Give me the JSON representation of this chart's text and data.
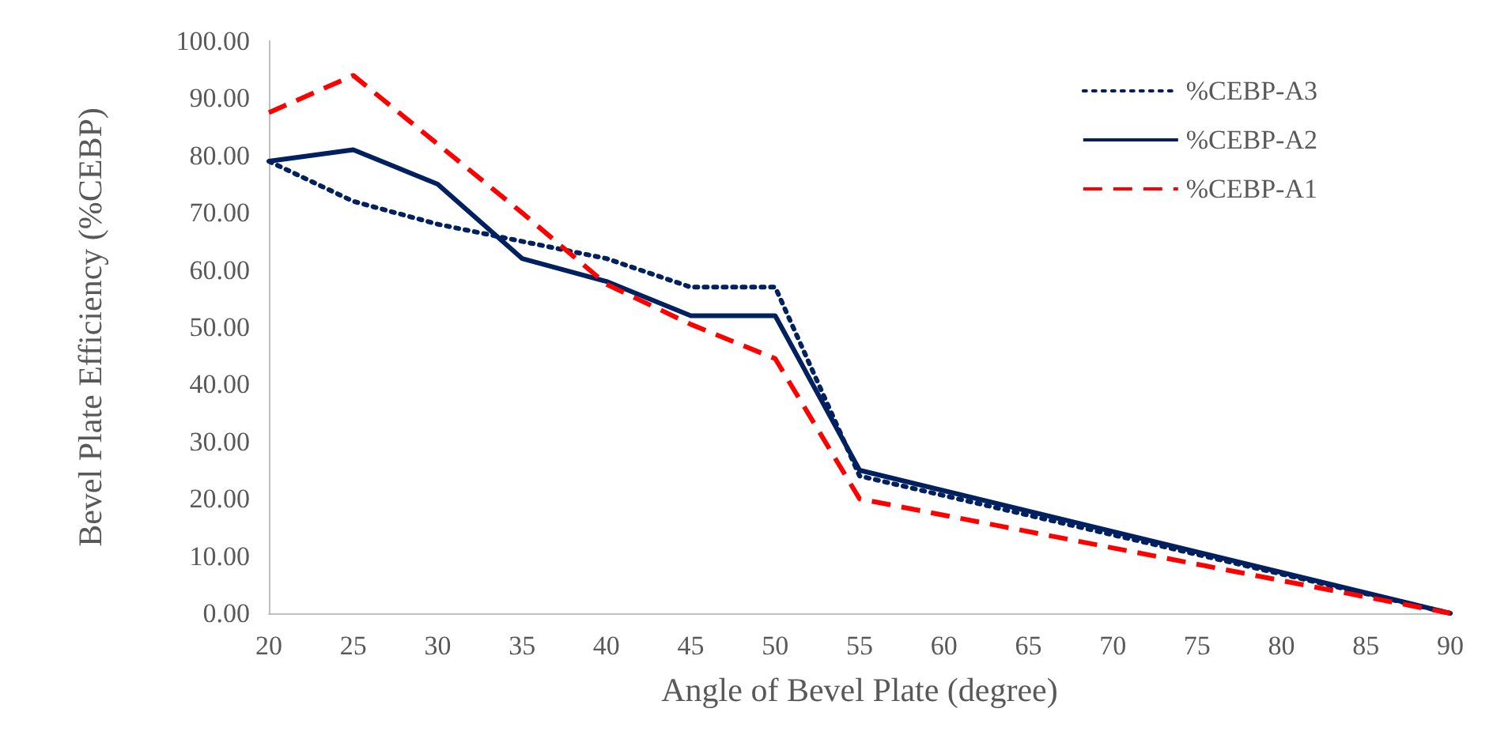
{
  "chart_data": {
    "type": "line",
    "xlabel": "Angle of Bevel Plate (degree)",
    "ylabel": "Bevel Plate Efficiency (%CEBP)",
    "x": [
      20,
      25,
      30,
      35,
      40,
      45,
      50,
      55,
      90
    ],
    "xlim": [
      20,
      90
    ],
    "xticks": [
      20,
      25,
      30,
      35,
      40,
      45,
      50,
      55,
      60,
      65,
      70,
      75,
      80,
      85,
      90
    ],
    "ylim": [
      0,
      100
    ],
    "yticks": [
      {
        "value": 0,
        "label": "0.00"
      },
      {
        "value": 10,
        "label": "10.00"
      },
      {
        "value": 20,
        "label": "20.00"
      },
      {
        "value": 30,
        "label": "30.00"
      },
      {
        "value": 40,
        "label": "40.00"
      },
      {
        "value": 50,
        "label": "50.00"
      },
      {
        "value": 60,
        "label": "60.00"
      },
      {
        "value": 70,
        "label": "70.00"
      },
      {
        "value": 80,
        "label": "80.00"
      },
      {
        "value": 90,
        "label": "90.00"
      },
      {
        "value": 100,
        "label": "100.00"
      }
    ],
    "grid": false,
    "legend": "top right",
    "marker": "none",
    "series": [
      {
        "name": "%CEBP-A3",
        "color": "#002060",
        "line_style": "dotted",
        "values": [
          79,
          72,
          68,
          65,
          62,
          57,
          57,
          24,
          0
        ]
      },
      {
        "name": "%CEBP-A2",
        "color": "#002060",
        "line_style": "solid",
        "values": [
          79,
          81,
          75,
          62,
          58,
          52,
          52,
          25,
          0
        ]
      },
      {
        "name": "%CEBP-A1",
        "color": "#ff0000",
        "line_style": "dashed",
        "values": [
          87.5,
          94,
          82,
          70,
          57.5,
          50.5,
          44.5,
          20,
          0
        ]
      }
    ]
  }
}
